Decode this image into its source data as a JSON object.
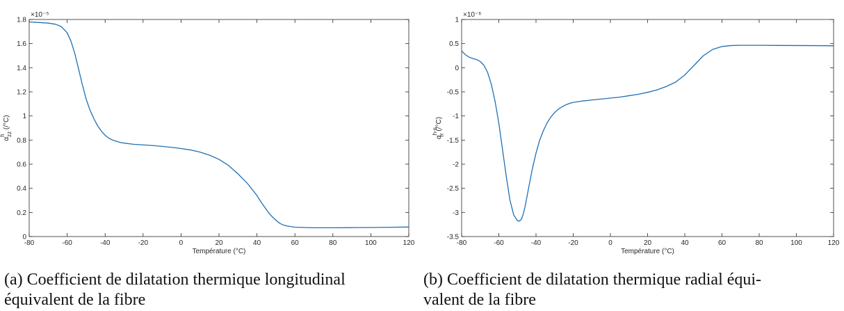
{
  "chart_data": [
    {
      "type": "line",
      "xlabel": "Température (°C)",
      "ylabel": {
        "base": "α",
        "sup": "h",
        "sub": "zz",
        "unit": " (/°C)"
      },
      "y_exponent": "×10⁻⁵",
      "xlim": [
        -80,
        120
      ],
      "ylim": [
        0,
        1.8
      ],
      "xticks": [
        "-80",
        "-60",
        "-40",
        "-20",
        "0",
        "20",
        "40",
        "60",
        "80",
        "100",
        "120"
      ],
      "yticks": [
        "0",
        "0.2",
        "0.4",
        "0.6",
        "0.8",
        "1",
        "1.2",
        "1.4",
        "1.6",
        "1.8"
      ],
      "grid": false,
      "line_color": "#1f6fb4",
      "x": [
        -80,
        -75,
        -70,
        -66,
        -63,
        -60,
        -58,
        -56,
        -54,
        -52,
        -50,
        -48,
        -46,
        -44,
        -42,
        -40,
        -38,
        -36,
        -34,
        -32,
        -30,
        -25,
        -20,
        -15,
        -10,
        -5,
        0,
        5,
        10,
        15,
        20,
        25,
        30,
        35,
        38,
        40,
        42,
        44,
        46,
        48,
        50,
        52,
        54,
        56,
        58,
        60,
        65,
        70,
        75,
        80,
        90,
        100,
        110,
        120
      ],
      "y": [
        1.78,
        1.775,
        1.77,
        1.76,
        1.74,
        1.69,
        1.62,
        1.52,
        1.39,
        1.26,
        1.14,
        1.05,
        0.98,
        0.92,
        0.875,
        0.84,
        0.815,
        0.8,
        0.79,
        0.78,
        0.775,
        0.765,
        0.76,
        0.755,
        0.748,
        0.74,
        0.73,
        0.718,
        0.7,
        0.675,
        0.64,
        0.59,
        0.52,
        0.44,
        0.38,
        0.34,
        0.29,
        0.245,
        0.2,
        0.165,
        0.135,
        0.11,
        0.095,
        0.087,
        0.082,
        0.078,
        0.075,
        0.073,
        0.073,
        0.073,
        0.074,
        0.075,
        0.077,
        0.079
      ]
    },
    {
      "type": "line",
      "xlabel": "Température (°C)",
      "ylabel": {
        "base": "α",
        "sup": "h-s",
        "sub": "rr",
        "unit": " (/°C)"
      },
      "y_exponent": "×10⁻⁶",
      "xlim": [
        -80,
        120
      ],
      "ylim": [
        -3.5,
        1
      ],
      "xticks": [
        "-80",
        "-60",
        "-40",
        "-20",
        "0",
        "20",
        "40",
        "60",
        "80",
        "100",
        "120"
      ],
      "yticks": [
        "-3.5",
        "-3",
        "-2.5",
        "-2",
        "-1.5",
        "-1",
        "-0.5",
        "0",
        "0.5",
        "1"
      ],
      "grid": false,
      "line_color": "#1f6fb4",
      "x": [
        -80,
        -78,
        -76,
        -74,
        -72,
        -70,
        -68,
        -66,
        -64,
        -62,
        -60,
        -58,
        -56,
        -54,
        -52,
        -50,
        -49,
        -48,
        -47,
        -46,
        -45,
        -44,
        -42,
        -40,
        -38,
        -36,
        -34,
        -32,
        -30,
        -28,
        -26,
        -24,
        -22,
        -20,
        -15,
        -10,
        -5,
        0,
        5,
        10,
        15,
        20,
        25,
        30,
        35,
        40,
        45,
        50,
        55,
        60,
        65,
        70,
        80,
        90,
        100,
        110,
        120
      ],
      "y": [
        0.35,
        0.27,
        0.22,
        0.19,
        0.17,
        0.13,
        0.05,
        -0.1,
        -0.35,
        -0.7,
        -1.15,
        -1.7,
        -2.25,
        -2.75,
        -3.05,
        -3.17,
        -3.18,
        -3.15,
        -3.05,
        -2.9,
        -2.7,
        -2.5,
        -2.1,
        -1.77,
        -1.5,
        -1.3,
        -1.14,
        -1.02,
        -0.93,
        -0.86,
        -0.81,
        -0.77,
        -0.74,
        -0.72,
        -0.69,
        -0.67,
        -0.65,
        -0.63,
        -0.61,
        -0.58,
        -0.55,
        -0.51,
        -0.46,
        -0.39,
        -0.3,
        -0.15,
        0.05,
        0.25,
        0.38,
        0.44,
        0.46,
        0.465,
        0.465,
        0.462,
        0.46,
        0.458,
        0.455
      ]
    }
  ],
  "captions": [
    {
      "line1": "(a) Coefficient de dilatation thermique longitudinal",
      "line2": "équivalent de la fibre"
    },
    {
      "line1": "(b) Coefficient de dilatation thermique radial équi-",
      "line2": "valent de la fibre"
    }
  ]
}
